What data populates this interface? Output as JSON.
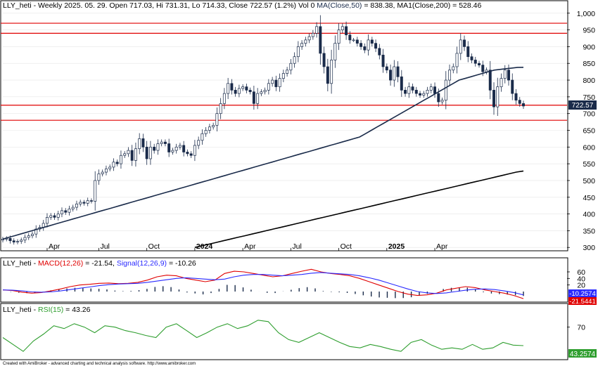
{
  "header": {
    "symbol": "LLY_heti",
    "period": "Weekly",
    "date": "2025. 05. 29.",
    "ohlc_text": "Open 717.03, Hi 731.31, Lo 714.33, Close 722.57 (1.2%) Vol 0",
    "ma50_label": "MA(Close,50)",
    "ma50_value": "= 838.38,",
    "ma200_label": "MA1(Close,200)",
    "ma200_value": "= 528.46"
  },
  "footer": "Created with AmiBroker - advanced charting and technical analysis software. http://www.amibroker.com",
  "macd_panel": {
    "symbol": "LLY_heti",
    "macd_label": "MACD(12,26)",
    "macd_value": "= -21.54,",
    "signal_label": "Signal(12,26,9)",
    "signal_value": "= -10.26",
    "tag_signal": "-10.2574",
    "tag_macd": "-21.5441"
  },
  "rsi_panel": {
    "symbol": "LLY_heti",
    "rsi_label": "RSI(15)",
    "rsi_value": "= 43.26",
    "tag_rsi": "43.2574"
  },
  "price_tag": "722.57",
  "colors": {
    "up_candle": "#ffffff",
    "down_candle": "#1a2b4a",
    "ma50": "#1a2b4a",
    "ma200": "#000000",
    "support_lines": "#e00000",
    "macd": "#e00000",
    "signal": "#2a2aff",
    "rsi": "#2e9e2e",
    "tag_macd_bg": "#e00000",
    "tag_signal_bg": "#2a2aff",
    "tag_rsi_bg": "#2e9e2e"
  },
  "chart_data": [
    {
      "type": "candlestick",
      "y_axis_ticks": [
        "1,000",
        "950",
        "900",
        "850",
        "800",
        "750",
        "700",
        "650",
        "600",
        "550",
        "500",
        "450",
        "400",
        "350",
        "300"
      ],
      "y_range": [
        290,
        1010
      ],
      "x_labels": [
        "Apr",
        "Jul",
        "Oct",
        "2024",
        "Apr",
        "Jul",
        "Oct",
        "2025",
        "Apr"
      ],
      "horizontal_levels": [
        970,
        940,
        725,
        680
      ],
      "close_series": [
        325,
        327,
        320,
        316,
        318,
        322,
        330,
        335,
        340,
        355,
        360,
        372,
        390,
        395,
        390,
        400,
        410,
        405,
        415,
        420,
        430,
        435,
        432,
        440,
        438,
        500,
        520,
        525,
        535,
        540,
        555,
        550,
        575,
        580,
        590,
        560,
        595,
        625,
        600,
        565,
        600,
        590,
        610,
        615,
        610,
        585,
        590,
        600,
        605,
        585,
        580,
        575,
        605,
        620,
        640,
        650,
        660,
        665,
        700,
        730,
        760,
        790,
        770,
        760,
        775,
        780,
        770,
        765,
        730,
        760,
        765,
        770,
        790,
        800,
        780,
        805,
        820,
        830,
        850,
        870,
        900,
        910,
        920,
        930,
        940,
        960,
        880,
        840,
        790,
        860,
        910,
        950,
        960,
        935,
        920,
        920,
        910,
        900,
        890,
        920,
        910,
        895,
        875,
        840,
        830,
        800,
        840,
        810,
        770,
        760,
        780,
        770,
        760,
        755,
        760,
        770,
        780,
        760,
        735,
        740,
        800,
        830,
        840,
        880,
        920,
        900,
        870,
        860,
        850,
        845,
        825,
        830,
        770,
        720,
        780,
        805,
        830,
        800,
        760,
        740,
        730,
        722.57
      ],
      "ma50_series": [
        325,
        330,
        335,
        340,
        345,
        350,
        355,
        360,
        365,
        370,
        375,
        380,
        385,
        390,
        395,
        400,
        405,
        410,
        415,
        420,
        425,
        430,
        435,
        440,
        445,
        450,
        455,
        460,
        465,
        470,
        475,
        480,
        485,
        490,
        495,
        500,
        505,
        510,
        515,
        520,
        525,
        530,
        535,
        540,
        545,
        550,
        555,
        560,
        565,
        570,
        575,
        580,
        585,
        590,
        595,
        600,
        605,
        610,
        615,
        620,
        625,
        630,
        640,
        650,
        660,
        670,
        680,
        690,
        700,
        710,
        720,
        730,
        740,
        750,
        760,
        770,
        780,
        790,
        800,
        805,
        810,
        815,
        820,
        825,
        830,
        832,
        834,
        836,
        838,
        838.38
      ],
      "ma200_series": [
        300,
        305,
        310,
        315,
        320,
        325,
        330,
        335,
        340,
        345,
        350,
        355,
        360,
        365,
        370,
        375,
        380,
        385,
        390,
        395,
        400,
        405,
        410,
        415,
        420,
        425,
        430,
        435,
        440,
        445,
        450,
        455,
        460,
        465,
        470,
        475,
        480,
        485,
        490,
        495,
        500,
        505,
        510,
        515,
        520,
        525,
        528.46
      ],
      "last_close": 722.57
    },
    {
      "type": "line",
      "name": "MACD",
      "y_axis_ticks": [
        "60",
        "40",
        "20"
      ],
      "y_range": [
        -30,
        75
      ],
      "series": [
        {
          "name": "MACD(12,26)",
          "values": [
            5,
            3,
            -2,
            -5,
            -3,
            2,
            8,
            15,
            20,
            22,
            25,
            26,
            24,
            25,
            28,
            35,
            45,
            50,
            48,
            40,
            35,
            30,
            35,
            55,
            62,
            60,
            55,
            50,
            45,
            48,
            55,
            62,
            68,
            60,
            55,
            52,
            48,
            40,
            30,
            20,
            10,
            0,
            -8,
            -12,
            -10,
            -5,
            5,
            10,
            15,
            12,
            5,
            0,
            -5,
            -12,
            -21.54
          ]
        },
        {
          "name": "Signal(12,26,9)",
          "values": [
            5,
            4,
            2,
            -1,
            -2,
            -1,
            2,
            6,
            10,
            14,
            18,
            21,
            23,
            24,
            25,
            28,
            32,
            36,
            40,
            42,
            40,
            38,
            36,
            38,
            45,
            50,
            52,
            52,
            50,
            48,
            50,
            52,
            56,
            58,
            56,
            54,
            52,
            48,
            42,
            35,
            26,
            17,
            8,
            0,
            -4,
            -6,
            -4,
            0,
            4,
            7,
            8,
            6,
            2,
            -3,
            -10.26
          ]
        }
      ],
      "histogram_bars": 66
    },
    {
      "type": "line",
      "name": "RSI",
      "y_axis_ticks": [
        "70"
      ],
      "y_range": [
        25,
        90
      ],
      "series": [
        {
          "name": "RSI(15)",
          "values": [
            55,
            45,
            35,
            50,
            60,
            72,
            68,
            75,
            70,
            62,
            72,
            70,
            65,
            62,
            58,
            55,
            70,
            75,
            65,
            55,
            62,
            70,
            75,
            68,
            72,
            80,
            78,
            62,
            52,
            48,
            55,
            62,
            55,
            48,
            42,
            40,
            45,
            42,
            38,
            35,
            48,
            52,
            44,
            38,
            40,
            38,
            45,
            38,
            40,
            48,
            44,
            43.26
          ]
        }
      ]
    }
  ]
}
